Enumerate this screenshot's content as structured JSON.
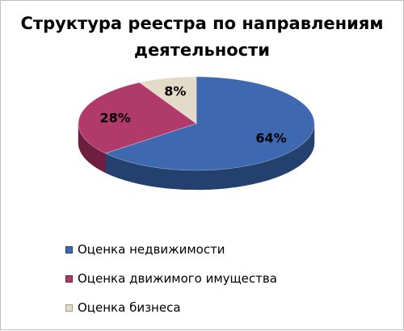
{
  "chart_data": {
    "type": "pie",
    "title": "Структура реестра по направлениям\nдеятельности",
    "categories": [
      "Оценка недвижимости",
      "Оценка движимого имущества",
      "Оценка бизнеса"
    ],
    "values": [
      64,
      28,
      8
    ],
    "data_labels": [
      "64%",
      "28%",
      "8%"
    ],
    "colors": [
      "#3E68AF",
      "#B03A6A",
      "#E3DBC8"
    ],
    "side_colors": [
      "#23406F",
      "#6E1F40",
      "#A39A84"
    ],
    "legend_position": "bottom",
    "three_d": true
  }
}
